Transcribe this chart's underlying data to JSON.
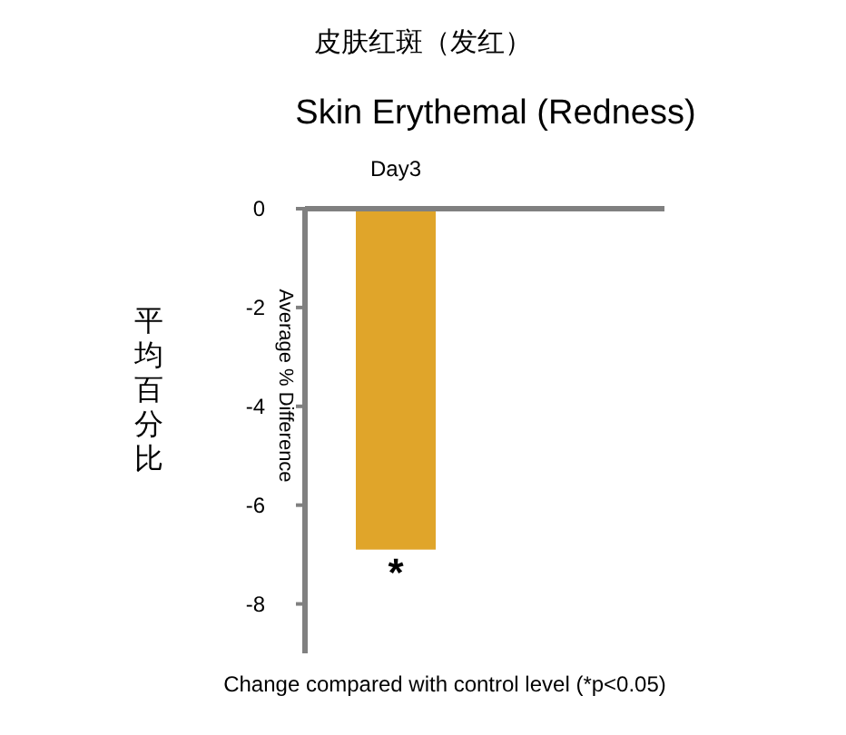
{
  "chart_data": {
    "type": "bar",
    "title": "皮肤红斑（发红）",
    "subtitle": "Skin Erythemal (Redness)",
    "ylabel": "Average % Difference",
    "categories": [
      "Day3"
    ],
    "values": [
      -6.9
    ],
    "color": "#e0a52a",
    "ylim": [
      -9,
      0
    ],
    "yticks": [
      0,
      -2,
      -4,
      -6,
      -8
    ],
    "grid": false,
    "annotations": [
      {
        "text": "*",
        "x": "Day3",
        "y": -6.9
      },
      "平均百分比",
      "Change compared with control level (*p<0.05)"
    ]
  }
}
